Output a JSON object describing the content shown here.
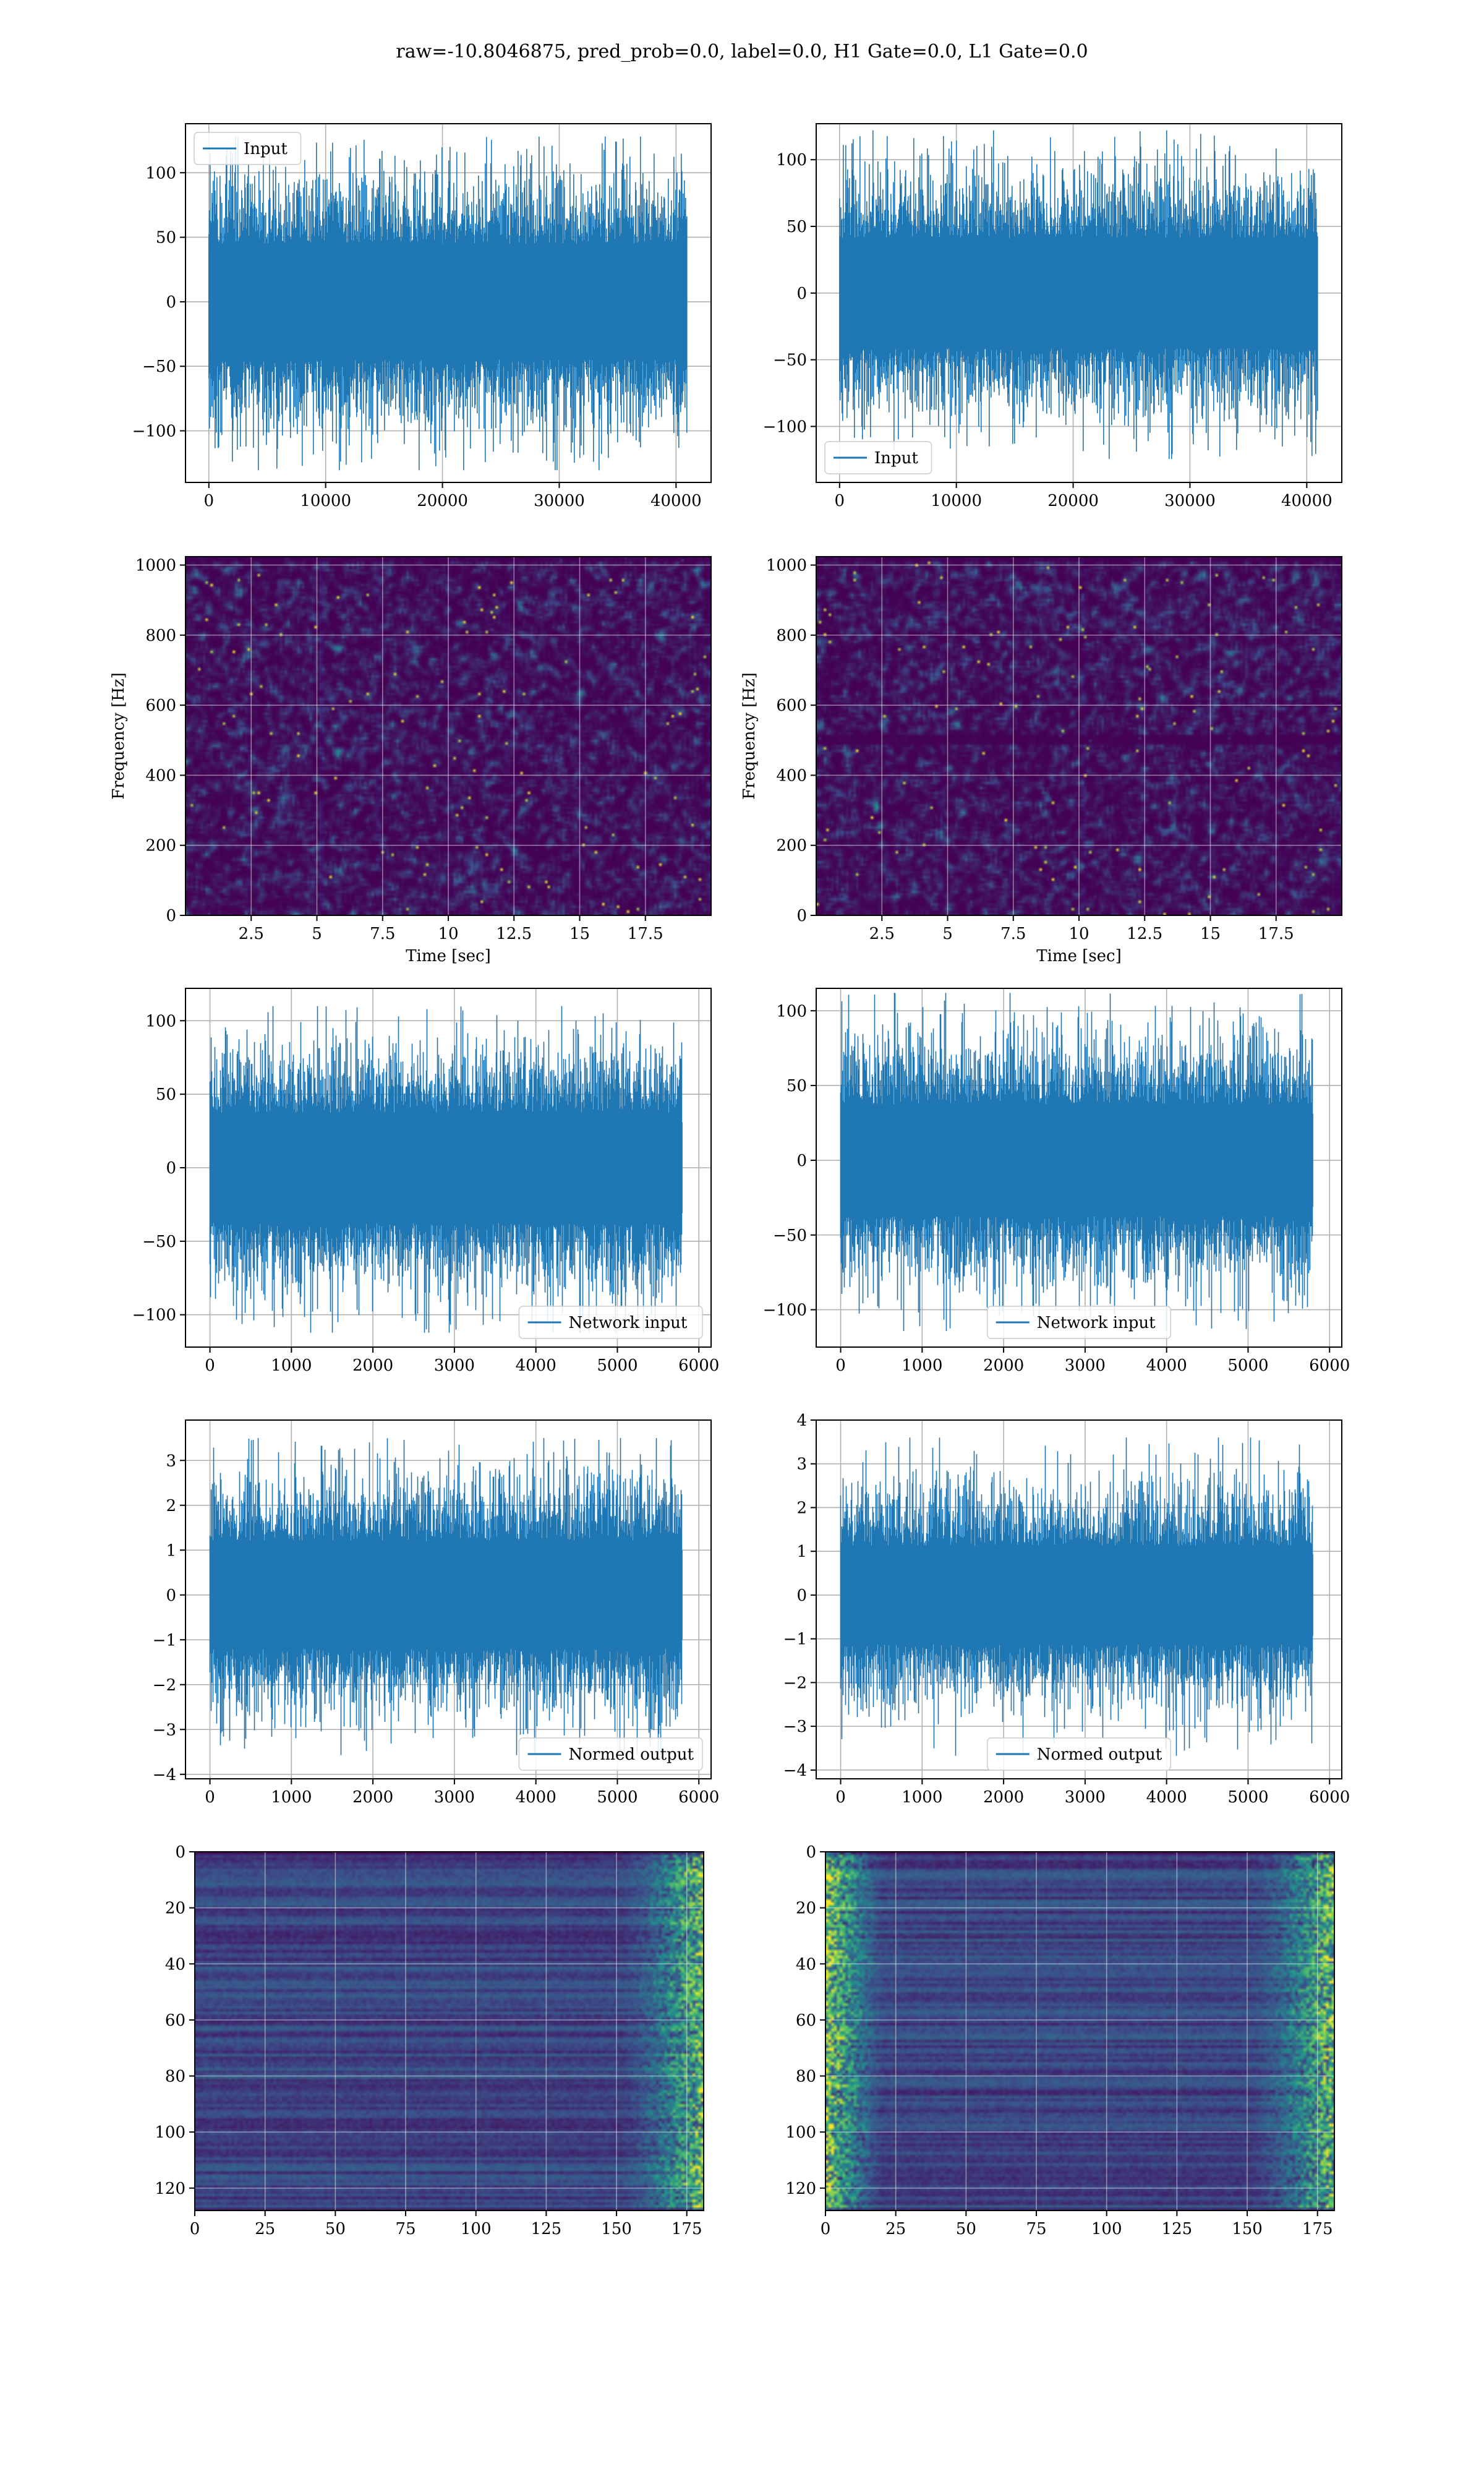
{
  "figure_title": "raw=-10.8046875, pred_prob=0.0, label=0.0, H1 Gate=0.0, L1 Gate=0.0",
  "colors": {
    "line": "#1f77b4",
    "grid": "#b0b0b0",
    "viridis_dark": "#440154",
    "viridis_mid": "#21918c",
    "viridis_bright": "#fde725"
  },
  "chart_data": [
    {
      "id": "input-left",
      "type": "line",
      "series": [
        {
          "name": "Input",
          "amplitude": 60,
          "peak": 128
        }
      ],
      "legend_label": "Input",
      "legend_loc": "upper-left",
      "xlim": [
        -2000,
        43000
      ],
      "ylim": [
        -140,
        138
      ],
      "xticks": [
        0,
        10000,
        20000,
        30000,
        40000
      ],
      "yticks": [
        -100,
        -50,
        0,
        50,
        100
      ],
      "n_samples": 40960,
      "grid": true
    },
    {
      "id": "input-right",
      "type": "line",
      "series": [
        {
          "name": "Input",
          "amplitude": 55,
          "peak": 122
        }
      ],
      "legend_label": "Input",
      "legend_loc": "lower-left",
      "xlim": [
        -2000,
        43000
      ],
      "ylim": [
        -142,
        127
      ],
      "xticks": [
        0,
        10000,
        20000,
        30000,
        40000
      ],
      "yticks": [
        -100,
        -50,
        0,
        50,
        100
      ],
      "n_samples": 40960,
      "grid": true
    },
    {
      "id": "spec-left",
      "type": "heatmap",
      "colormap": "viridis",
      "xlim": [
        0,
        20
      ],
      "ylim": [
        0,
        1024
      ],
      "xticks": [
        2.5,
        5.0,
        7.5,
        10.0,
        12.5,
        15.0,
        17.5
      ],
      "yticks": [
        0,
        200,
        400,
        600,
        800,
        1000
      ],
      "xlabel": "Time [sec]",
      "ylabel": "Frequency [Hz]",
      "grid": true
    },
    {
      "id": "spec-right",
      "type": "heatmap",
      "colormap": "viridis",
      "xlim": [
        0,
        20
      ],
      "ylim": [
        0,
        1024
      ],
      "xticks": [
        2.5,
        5.0,
        7.5,
        10.0,
        12.5,
        15.0,
        17.5
      ],
      "yticks": [
        0,
        200,
        400,
        600,
        800,
        1000
      ],
      "xlabel": "Time [sec]",
      "ylabel": "Frequency [Hz]",
      "grid": true
    },
    {
      "id": "network-left",
      "type": "line",
      "series": [
        {
          "name": "Network input",
          "amplitude": 50,
          "peak": 110
        }
      ],
      "legend_label": "Network input",
      "legend_loc": "lower-right",
      "xlim": [
        -300,
        6150
      ],
      "ylim": [
        -122,
        122
      ],
      "xticks": [
        0,
        1000,
        2000,
        3000,
        4000,
        5000,
        6000
      ],
      "yticks": [
        -100,
        -50,
        0,
        50,
        100
      ],
      "n_samples": 5800,
      "grid": true
    },
    {
      "id": "network-right",
      "type": "line",
      "series": [
        {
          "name": "Network input",
          "amplitude": 50,
          "peak": 112
        }
      ],
      "legend_label": "Network input",
      "legend_loc": "lower-center",
      "xlim": [
        -300,
        6150
      ],
      "ylim": [
        -125,
        115
      ],
      "xticks": [
        0,
        1000,
        2000,
        3000,
        4000,
        5000,
        6000
      ],
      "yticks": [
        -100,
        -50,
        0,
        50,
        100
      ],
      "n_samples": 5800,
      "grid": true
    },
    {
      "id": "normed-left",
      "type": "line",
      "series": [
        {
          "name": "Normed output",
          "amplitude": 1.6,
          "peak": 3.5
        }
      ],
      "legend_label": "Normed output",
      "legend_loc": "lower-right",
      "xlim": [
        -300,
        6150
      ],
      "ylim": [
        -4.1,
        3.9
      ],
      "xticks": [
        0,
        1000,
        2000,
        3000,
        4000,
        5000,
        6000
      ],
      "yticks": [
        -4,
        -3,
        -2,
        -1,
        0,
        1,
        2,
        3
      ],
      "n_samples": 5800,
      "grid": true
    },
    {
      "id": "normed-right",
      "type": "line",
      "series": [
        {
          "name": "Normed output",
          "amplitude": 1.5,
          "peak": 3.6
        }
      ],
      "legend_label": "Normed output",
      "legend_loc": "lower-center",
      "xlim": [
        -300,
        6150
      ],
      "ylim": [
        -4.2,
        4.0
      ],
      "xticks": [
        0,
        1000,
        2000,
        3000,
        4000,
        5000,
        6000
      ],
      "yticks": [
        -4,
        -3,
        -2,
        -1,
        0,
        1,
        2,
        3,
        4
      ],
      "n_samples": 5800,
      "grid": true
    },
    {
      "id": "feature-left",
      "type": "heatmap",
      "colormap": "viridis",
      "xlim": [
        0,
        181
      ],
      "ylim": [
        128,
        0
      ],
      "xticks": [
        0,
        25,
        50,
        75,
        100,
        125,
        150,
        175
      ],
      "yticks": [
        0,
        20,
        40,
        60,
        80,
        100,
        120
      ],
      "rows": 128,
      "cols": 181,
      "grid": true
    },
    {
      "id": "feature-right",
      "type": "heatmap",
      "colormap": "viridis",
      "xlim": [
        0,
        181
      ],
      "ylim": [
        128,
        0
      ],
      "xticks": [
        0,
        25,
        50,
        75,
        100,
        125,
        150,
        175
      ],
      "yticks": [
        0,
        20,
        40,
        60,
        80,
        100,
        120
      ],
      "rows": 128,
      "cols": 181,
      "grid": true
    }
  ]
}
